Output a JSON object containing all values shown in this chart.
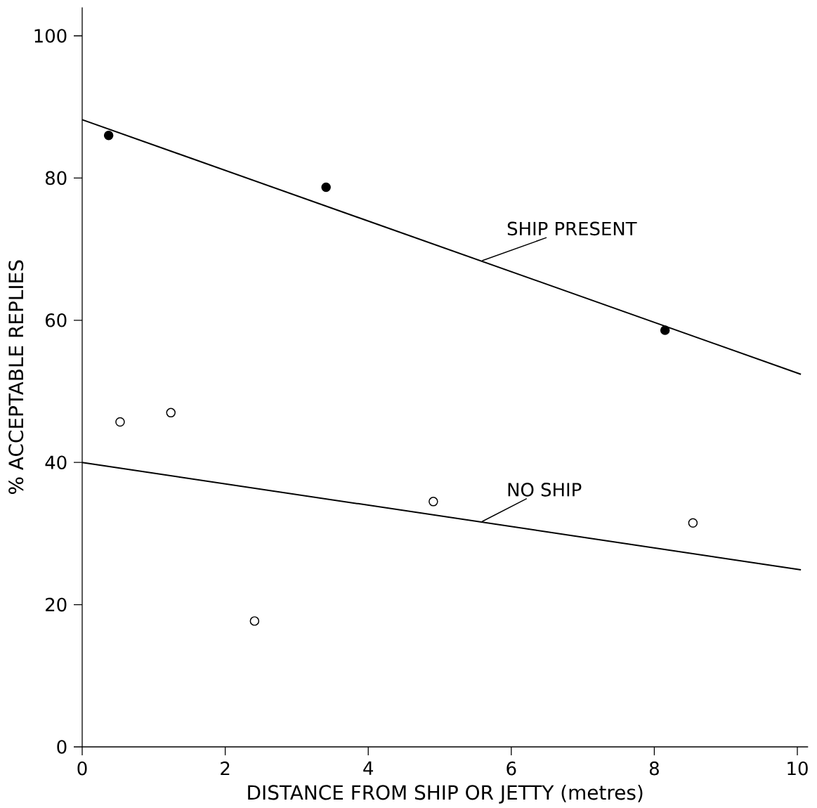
{
  "chart_data": {
    "type": "scatter",
    "xlabel": "DISTANCE FROM SHIP OR JETTY (metres)",
    "ylabel": "% ACCEPTABLE REPLIES",
    "xlim": [
      0,
      10.15
    ],
    "ylim": [
      0,
      104
    ],
    "xticks": [
      0,
      2,
      4,
      6,
      8,
      10
    ],
    "yticks": [
      0,
      20,
      40,
      60,
      80,
      100
    ],
    "grid": false,
    "legend": false,
    "series": [
      {
        "marker": "circle",
        "color": "#000000",
        "x": [
          0.37,
          3.41,
          8.15
        ],
        "values": [
          86,
          78.7,
          58.6
        ]
      },
      {
        "marker": "circle",
        "color": "#000000",
        "x": [
          0.53,
          1.24,
          2.41,
          4.91,
          8.54
        ],
        "values": [
          45.7,
          47,
          17.7,
          34.5,
          31.5
        ]
      },
      {
        "type": "line",
        "name": "SHIP PRESENT",
        "color": "#000000",
        "x": [
          0,
          10.05
        ],
        "values": [
          88.2,
          52.4
        ],
        "marker": "none"
      },
      {
        "type": "line",
        "name": "NO SHIP",
        "color": "#000000",
        "x": [
          0,
          10.05
        ],
        "values": [
          40,
          24.9
        ],
        "marker": "none"
      }
    ]
  }
}
